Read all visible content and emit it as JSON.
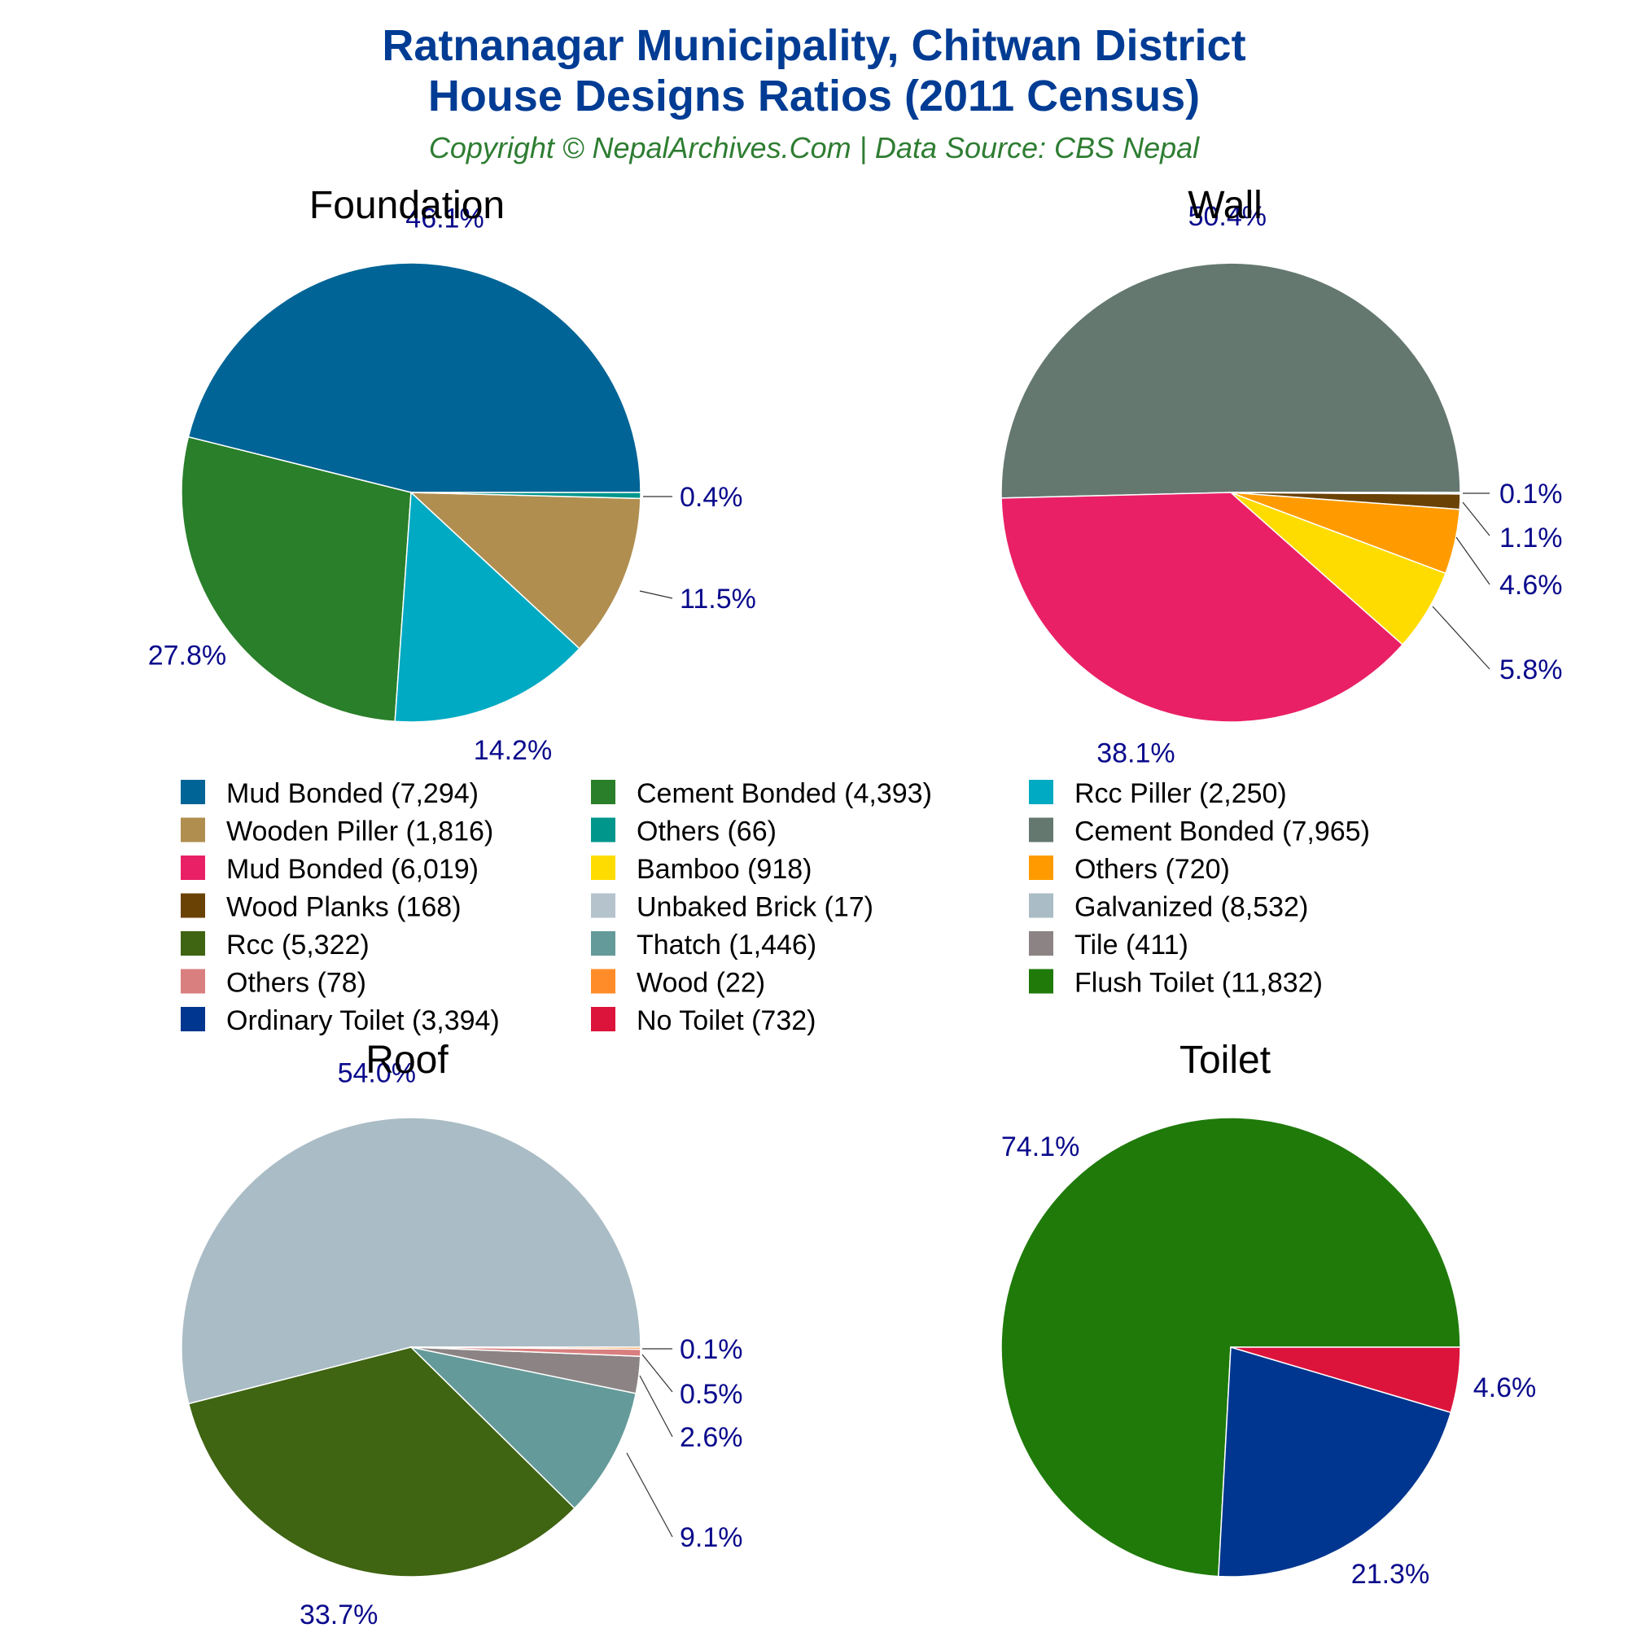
{
  "header": {
    "title_line1": "Ratnanagar Municipality, Chitwan District",
    "title_line2": "House Designs Ratios (2011 Census)",
    "subtitle": "Copyright © NepalArchives.Com | Data Source: CBS Nepal"
  },
  "colors": {
    "title": "#003c94",
    "subtitle": "#2e7d32",
    "percent_labels": "#0a0a8c"
  },
  "chart_data": [
    {
      "type": "pie",
      "title": "Foundation",
      "slices": [
        {
          "label": "Mud Bonded",
          "value": 7294,
          "pct_label": "46.1%",
          "color": "#006496"
        },
        {
          "label": "Cement Bonded",
          "value": 4393,
          "pct_label": "27.8%",
          "color": "#2a7f2a"
        },
        {
          "label": "Rcc Piller",
          "value": 2250,
          "pct_label": "14.2%",
          "color": "#00aac3"
        },
        {
          "label": "Wooden Piller",
          "value": 1816,
          "pct_label": "11.5%",
          "color": "#b08e50"
        },
        {
          "label": "Others",
          "value": 66,
          "pct_label": "0.4%",
          "color": "#00968c"
        }
      ]
    },
    {
      "type": "pie",
      "title": "Wall",
      "slices": [
        {
          "label": "Cement Bonded",
          "value": 7965,
          "pct_label": "50.4%",
          "color": "#647870"
        },
        {
          "label": "Mud Bonded",
          "value": 6019,
          "pct_label": "38.1%",
          "color": "#e92066"
        },
        {
          "label": "Bamboo",
          "value": 918,
          "pct_label": "5.8%",
          "color": "#ffdc00"
        },
        {
          "label": "Others",
          "value": 720,
          "pct_label": "4.6%",
          "color": "#ff9b00"
        },
        {
          "label": "Wood Planks",
          "value": 168,
          "pct_label": "1.1%",
          "color": "#6b4205"
        },
        {
          "label": "Unbaked Brick",
          "value": 17,
          "pct_label": "0.1%",
          "color": "#b4c3cc"
        }
      ]
    },
    {
      "type": "pie",
      "title": "Roof",
      "slices": [
        {
          "label": "Galvanized",
          "value": 8532,
          "pct_label": "54.0%",
          "color": "#aabcc5"
        },
        {
          "label": "Rcc",
          "value": 5322,
          "pct_label": "33.7%",
          "color": "#3f6412"
        },
        {
          "label": "Thatch",
          "value": 1446,
          "pct_label": "9.1%",
          "color": "#659a9a"
        },
        {
          "label": "Tile",
          "value": 411,
          "pct_label": "2.6%",
          "color": "#8c8484"
        },
        {
          "label": "Others",
          "value": 78,
          "pct_label": "0.5%",
          "color": "#d97f7f"
        },
        {
          "label": "Wood",
          "value": 22,
          "pct_label": "0.1%",
          "color": "#ff8c28"
        }
      ]
    },
    {
      "type": "pie",
      "title": "Toilet",
      "slices": [
        {
          "label": "Flush Toilet",
          "value": 11832,
          "pct_label": "74.1%",
          "color": "#1f7a0a"
        },
        {
          "label": "Ordinary Toilet",
          "value": 3394,
          "pct_label": "21.3%",
          "color": "#00368f"
        },
        {
          "label": "No Toilet",
          "value": 732,
          "pct_label": "4.6%",
          "color": "#dc143c"
        }
      ]
    }
  ],
  "legend": {
    "items": [
      {
        "text": "Mud Bonded (7,294)",
        "color": "#006496"
      },
      {
        "text": "Cement Bonded (4,393)",
        "color": "#2a7f2a"
      },
      {
        "text": "Rcc Piller (2,250)",
        "color": "#00aac3"
      },
      {
        "text": "Wooden Piller (1,816)",
        "color": "#b08e50"
      },
      {
        "text": "Others (66)",
        "color": "#00968c"
      },
      {
        "text": "Cement Bonded (7,965)",
        "color": "#647870"
      },
      {
        "text": "Mud Bonded (6,019)",
        "color": "#e92066"
      },
      {
        "text": "Bamboo (918)",
        "color": "#ffdc00"
      },
      {
        "text": "Others (720)",
        "color": "#ff9b00"
      },
      {
        "text": "Wood Planks (168)",
        "color": "#6b4205"
      },
      {
        "text": "Unbaked Brick (17)",
        "color": "#b4c3cc"
      },
      {
        "text": "Galvanized (8,532)",
        "color": "#aabcc5"
      },
      {
        "text": "Rcc (5,322)",
        "color": "#3f6412"
      },
      {
        "text": "Thatch (1,446)",
        "color": "#659a9a"
      },
      {
        "text": "Tile (411)",
        "color": "#8c8484"
      },
      {
        "text": "Others (78)",
        "color": "#d97f7f"
      },
      {
        "text": "Wood (22)",
        "color": "#ff8c28"
      },
      {
        "text": "Flush Toilet (11,832)",
        "color": "#1f7a0a"
      },
      {
        "text": "Ordinary Toilet (3,394)",
        "color": "#00368f"
      },
      {
        "text": "No Toilet (732)",
        "color": "#dc143c"
      }
    ]
  }
}
